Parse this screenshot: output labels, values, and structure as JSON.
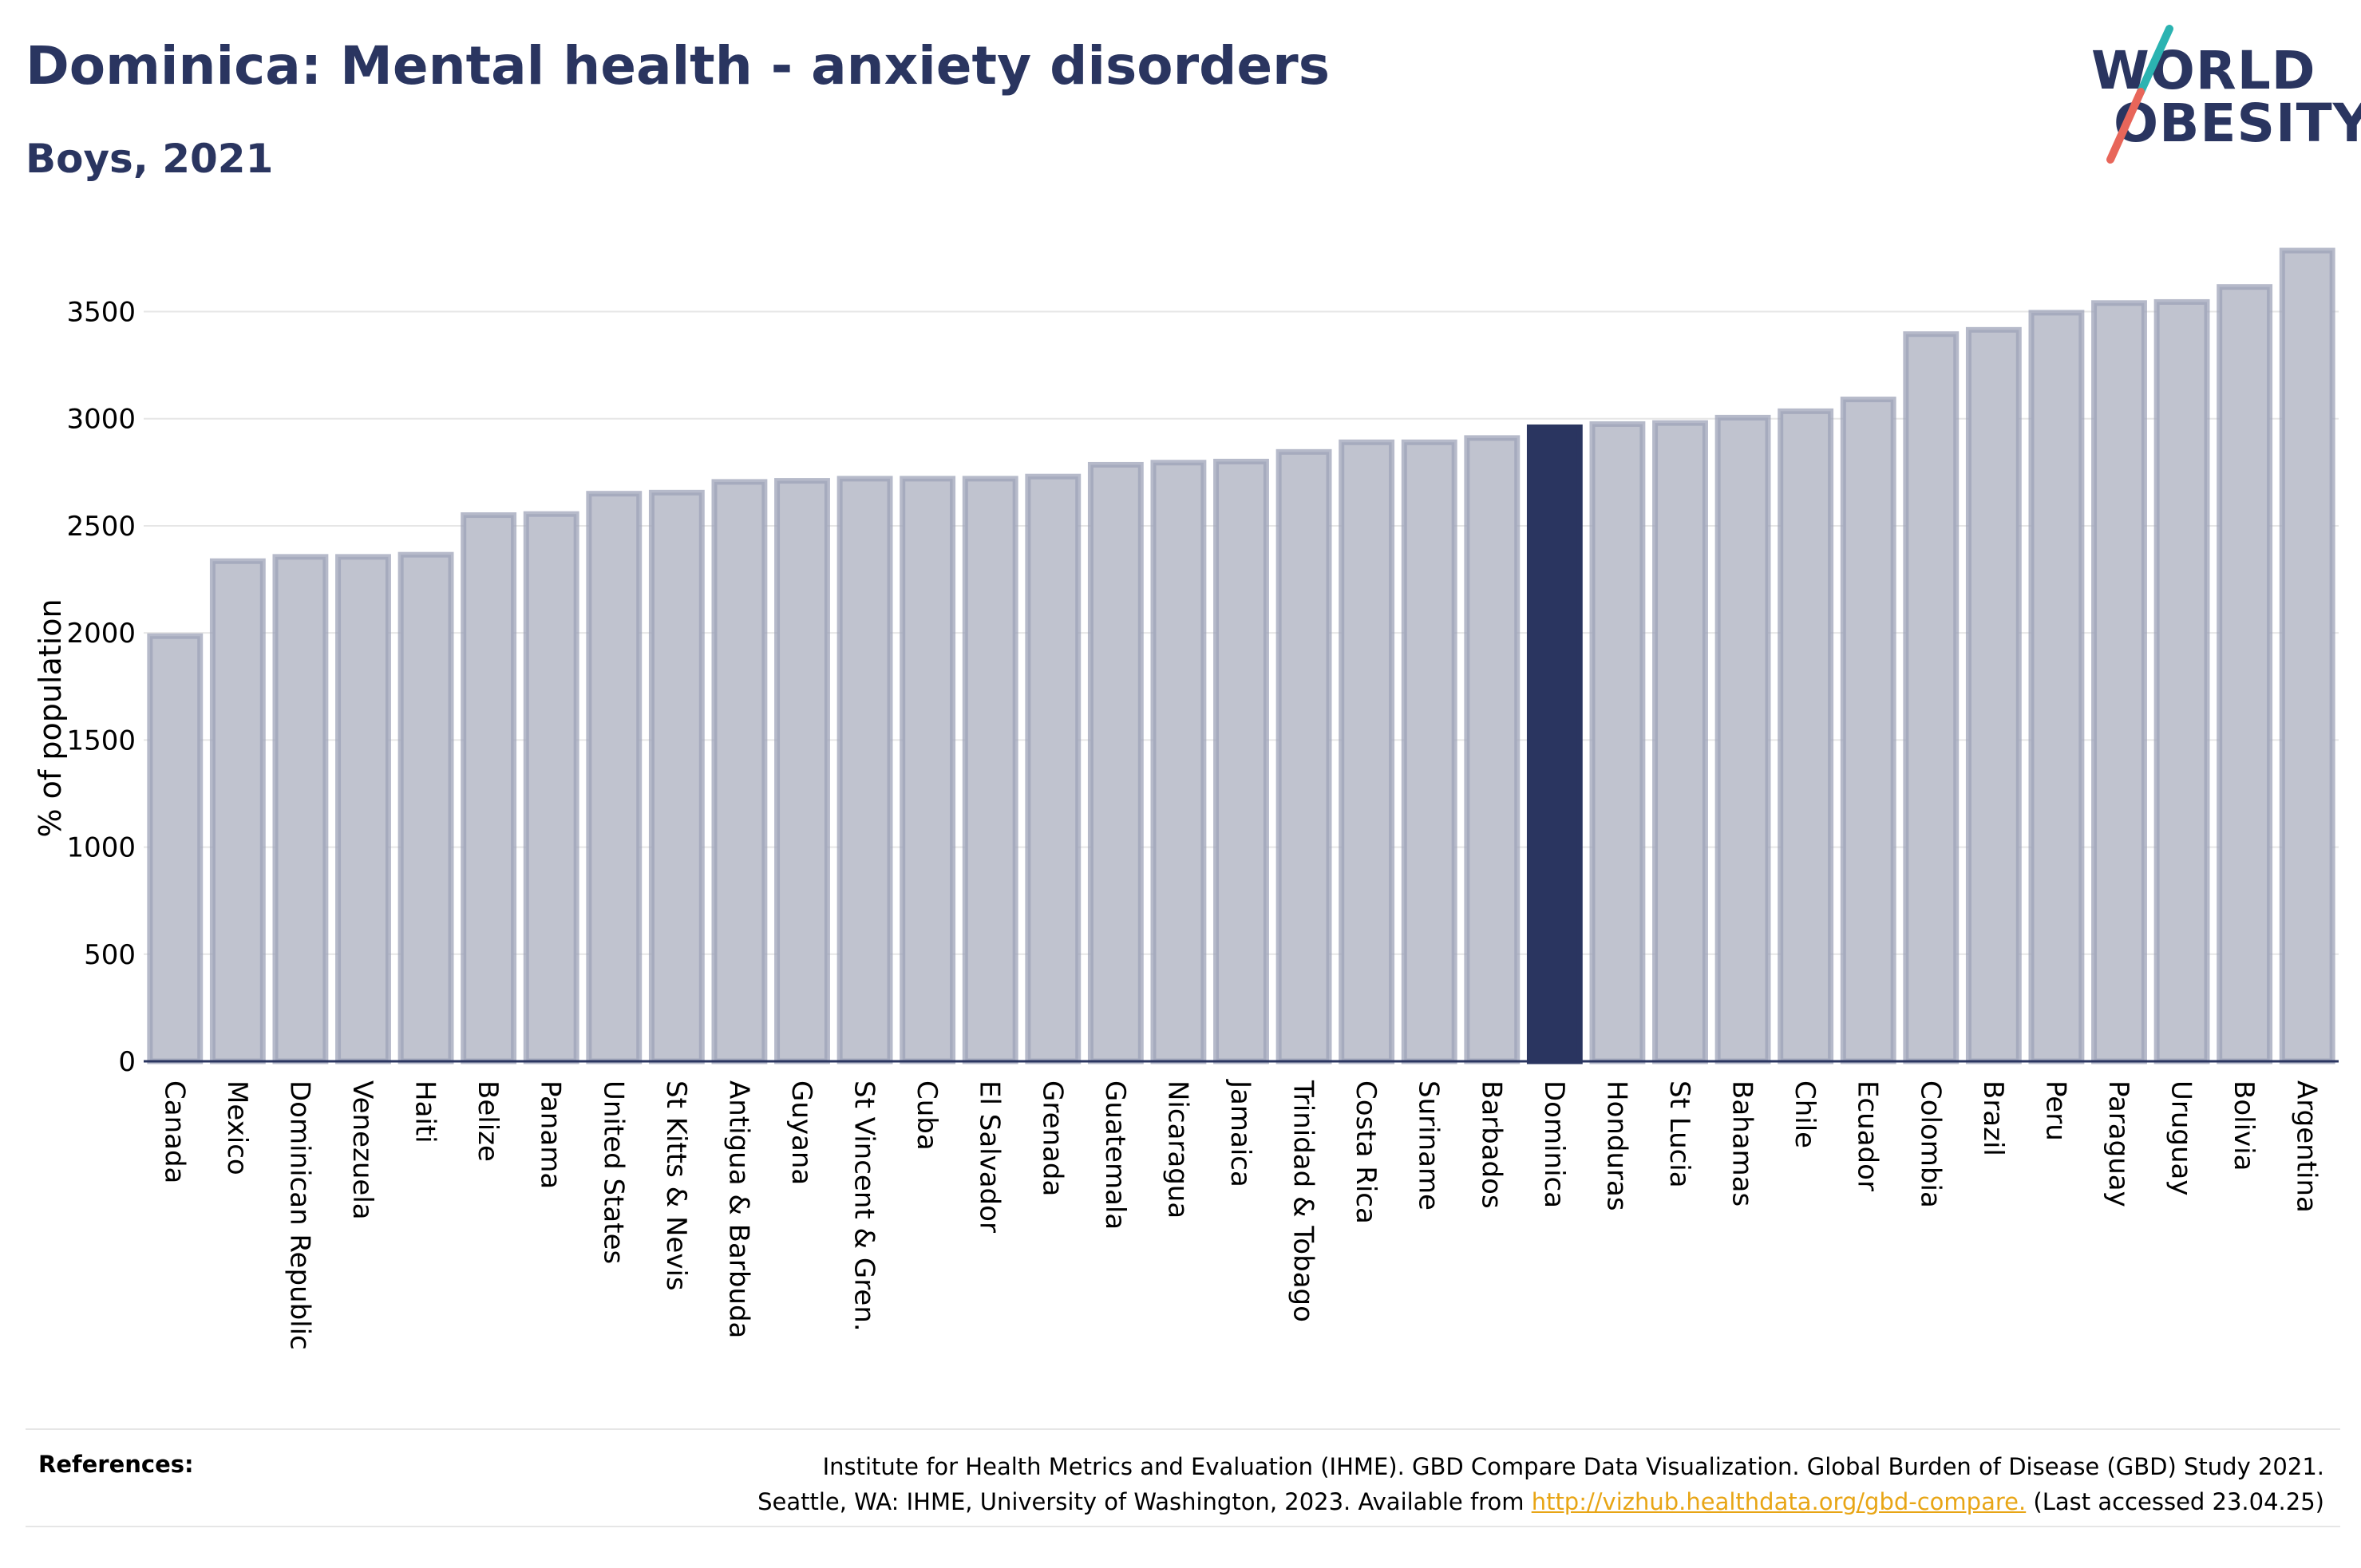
{
  "header": {
    "title": "Dominica: Mental health - anxiety disorders",
    "subtitle": "Boys, 2021"
  },
  "logo": {
    "line1": "WORLD",
    "line2": "OBESITY",
    "colors": {
      "text": "#2a3560",
      "slash_top": "#2bb3b1",
      "slash_bottom": "#e8665a"
    }
  },
  "chart_data": {
    "type": "bar",
    "ylabel": "% of population",
    "xlabel": "",
    "ylim": [
      0,
      3800
    ],
    "yticks": [
      0,
      500,
      1000,
      1500,
      2000,
      2500,
      3000,
      3500
    ],
    "grid": true,
    "highlight": "Dominica",
    "colors": {
      "bar": "#c0c3cf",
      "bar_border": "#9ea3b8",
      "highlight": "#2a3560",
      "axis": "#2a3560",
      "grid": "#e6e6e6"
    },
    "categories": [
      "Canada",
      "Mexico",
      "Dominican Republic",
      "Venezuela",
      "Haiti",
      "Belize",
      "Panama",
      "United States",
      "St Kitts & Nevis",
      "Antigua & Barbuda",
      "Guyana",
      "St Vincent & Gren.",
      "Cuba",
      "El Salvador",
      "Grenada",
      "Guatemala",
      "Nicaragua",
      "Jamaica",
      "Trinidad & Tobago",
      "Costa Rica",
      "Suriname",
      "Barbados",
      "Dominica",
      "Honduras",
      "St Lucia",
      "Bahamas",
      "Chile",
      "Ecuador",
      "Colombia",
      "Brazil",
      "Peru",
      "Paraguay",
      "Uruguay",
      "Bolivia",
      "Argentina"
    ],
    "values": [
      1985,
      2335,
      2355,
      2355,
      2365,
      2550,
      2555,
      2650,
      2655,
      2705,
      2710,
      2720,
      2720,
      2720,
      2730,
      2785,
      2795,
      2800,
      2845,
      2890,
      2890,
      2910,
      2960,
      2975,
      2980,
      3005,
      3035,
      3090,
      3395,
      3415,
      3495,
      3540,
      3545,
      3615,
      3785
    ]
  },
  "references": {
    "label": "References:",
    "line1": "Institute for Health Metrics and Evaluation (IHME). GBD Compare Data Visualization. Global Burden of Disease (GBD) Study 2021.",
    "line2_prefix": "Seattle, WA: IHME, University of Washington, 2023. Available from ",
    "link": "http://vizhub.healthdata.org/gbd-compare.",
    "line2_suffix": " (Last accessed 23.04.25)"
  }
}
